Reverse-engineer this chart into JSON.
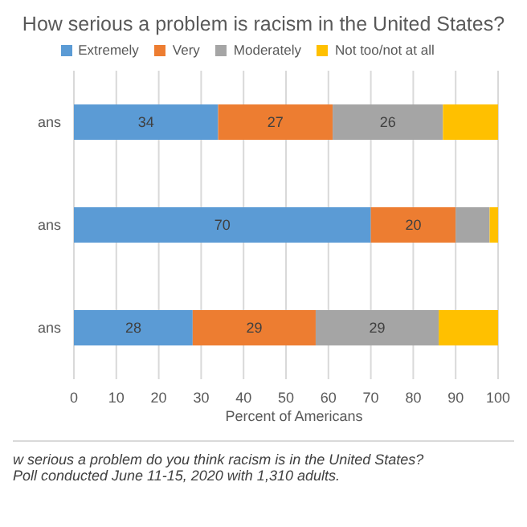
{
  "chart_data": {
    "type": "bar",
    "orientation": "horizontal",
    "stacked": true,
    "title": "How serious a problem is racism in the United States?",
    "xlabel": "Percent of Americans",
    "categories": [
      "ans",
      "ans",
      "ans"
    ],
    "series": [
      {
        "name": "Extremely",
        "color": "#5b9bd5",
        "values": [
          34,
          70,
          28
        ],
        "value_labels": [
          "34",
          "70",
          "28"
        ]
      },
      {
        "name": "Very",
        "color": "#ed7d31",
        "values": [
          27,
          20,
          29
        ],
        "value_labels": [
          "27",
          "20",
          "29"
        ]
      },
      {
        "name": "Moderately",
        "color": "#a5a5a5",
        "values": [
          26,
          8,
          29
        ],
        "value_labels": [
          "26",
          null,
          "29"
        ]
      },
      {
        "name": "Not too/not at all",
        "color": "#ffc000",
        "values": [
          13,
          2,
          14
        ],
        "value_labels": [
          null,
          null,
          null
        ]
      }
    ],
    "xlim": [
      0,
      100
    ],
    "xticks": [
      0,
      10,
      20,
      30,
      40,
      50,
      60,
      70,
      80,
      90,
      100
    ],
    "grid": "x",
    "legend": "top",
    "annotations": [
      "w serious a problem do you think racism is in the United States?",
      "Poll conducted June 11-15, 2020 with 1,310 adults."
    ]
  }
}
